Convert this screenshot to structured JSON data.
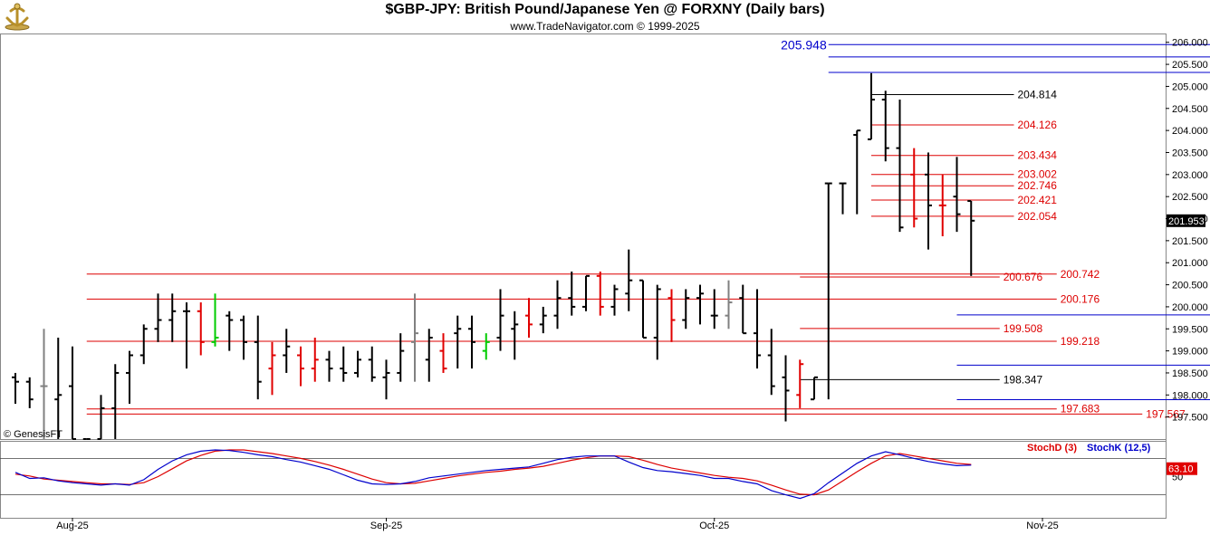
{
  "title": "$GBP-JPY:  British Pound/Japanese Yen @ FORXNY  (Daily bars)",
  "subtitle": "www.TradeNavigator.com © 1999-2025",
  "copyright": "© GenesisFT",
  "chart_data": {
    "type": "ohlc",
    "price_axis": {
      "ylim": [
        197.0,
        206.2
      ],
      "ticks": [
        "197.500",
        "198.000",
        "198.500",
        "199.000",
        "199.500",
        "200.000",
        "200.500",
        "201.000",
        "201.500",
        "202.000",
        "202.500",
        "203.000",
        "203.500",
        "204.000",
        "204.500",
        "205.000",
        "205.500",
        "206.000"
      ],
      "last_price": "201.953"
    },
    "x_ticks": [
      {
        "label": "Aug-25",
        "bar": 4
      },
      {
        "label": "Sep-25",
        "bar": 26
      },
      {
        "label": "Oct-25",
        "bar": 49
      },
      {
        "label": "Nov-25",
        "bar": 72
      }
    ],
    "bars": [
      {
        "o": 198.4,
        "h": 198.5,
        "l": 197.8,
        "c": 198.3,
        "col": "black"
      },
      {
        "o": 198.3,
        "h": 198.4,
        "l": 197.7,
        "c": 197.9,
        "col": "black"
      },
      {
        "o": 198.2,
        "h": 199.5,
        "l": 197.0,
        "c": 198.2,
        "col": "gray"
      },
      {
        "o": 197.9,
        "h": 199.3,
        "l": 197.0,
        "c": 198.0,
        "col": "black"
      },
      {
        "o": 198.2,
        "h": 199.1,
        "l": 197.0,
        "c": 197.0,
        "col": "black"
      },
      {
        "o": 197.0,
        "h": 197.0,
        "l": 197.0,
        "c": 197.0,
        "col": "black"
      },
      {
        "o": 197.0,
        "h": 198.0,
        "l": 197.0,
        "c": 197.7,
        "col": "black"
      },
      {
        "o": 197.7,
        "h": 198.7,
        "l": 197.0,
        "c": 198.5,
        "col": "black"
      },
      {
        "o": 198.5,
        "h": 199.0,
        "l": 197.8,
        "c": 198.9,
        "col": "black"
      },
      {
        "o": 198.9,
        "h": 199.6,
        "l": 198.7,
        "c": 199.5,
        "col": "black"
      },
      {
        "o": 199.5,
        "h": 200.3,
        "l": 199.2,
        "c": 199.7,
        "col": "black"
      },
      {
        "o": 199.7,
        "h": 200.3,
        "l": 199.2,
        "c": 199.9,
        "col": "black"
      },
      {
        "o": 199.9,
        "h": 200.1,
        "l": 198.6,
        "c": 199.9,
        "col": "black"
      },
      {
        "o": 199.9,
        "h": 200.1,
        "l": 198.9,
        "c": 199.2,
        "col": "red"
      },
      {
        "o": 199.2,
        "h": 200.3,
        "l": 199.1,
        "c": 199.3,
        "col": "green"
      },
      {
        "o": 199.8,
        "h": 199.9,
        "l": 199.0,
        "c": 199.7,
        "col": "black"
      },
      {
        "o": 199.7,
        "h": 199.8,
        "l": 198.8,
        "c": 199.2,
        "col": "black"
      },
      {
        "o": 199.2,
        "h": 199.8,
        "l": 197.9,
        "c": 198.3,
        "col": "black"
      },
      {
        "o": 198.6,
        "h": 199.2,
        "l": 198.0,
        "c": 198.9,
        "col": "red"
      },
      {
        "o": 198.9,
        "h": 199.5,
        "l": 198.5,
        "c": 199.1,
        "col": "black"
      },
      {
        "o": 198.9,
        "h": 199.1,
        "l": 198.2,
        "c": 198.6,
        "col": "red"
      },
      {
        "o": 198.6,
        "h": 199.3,
        "l": 198.3,
        "c": 198.8,
        "col": "red"
      },
      {
        "o": 198.8,
        "h": 199.0,
        "l": 198.3,
        "c": 198.6,
        "col": "black"
      },
      {
        "o": 198.6,
        "h": 199.1,
        "l": 198.3,
        "c": 198.5,
        "col": "black"
      },
      {
        "o": 198.5,
        "h": 199.0,
        "l": 198.4,
        "c": 198.8,
        "col": "black"
      },
      {
        "o": 198.8,
        "h": 199.1,
        "l": 198.3,
        "c": 198.4,
        "col": "black"
      },
      {
        "o": 198.4,
        "h": 198.8,
        "l": 197.9,
        "c": 198.5,
        "col": "black"
      },
      {
        "o": 198.5,
        "h": 199.4,
        "l": 198.3,
        "c": 199.0,
        "col": "black"
      },
      {
        "o": 199.2,
        "h": 200.3,
        "l": 198.3,
        "c": 199.4,
        "col": "gray"
      },
      {
        "o": 198.8,
        "h": 199.5,
        "l": 198.3,
        "c": 199.3,
        "col": "black"
      },
      {
        "o": 199.0,
        "h": 199.4,
        "l": 198.5,
        "c": 198.6,
        "col": "red"
      },
      {
        "o": 199.4,
        "h": 199.8,
        "l": 198.6,
        "c": 199.5,
        "col": "black"
      },
      {
        "o": 199.5,
        "h": 199.8,
        "l": 198.6,
        "c": 199.2,
        "col": "black"
      },
      {
        "o": 199.0,
        "h": 199.4,
        "l": 198.8,
        "c": 199.2,
        "col": "green"
      },
      {
        "o": 199.3,
        "h": 200.4,
        "l": 199.0,
        "c": 199.8,
        "col": "black"
      },
      {
        "o": 199.5,
        "h": 199.9,
        "l": 198.8,
        "c": 199.6,
        "col": "black"
      },
      {
        "o": 199.8,
        "h": 200.2,
        "l": 199.3,
        "c": 199.6,
        "col": "red"
      },
      {
        "o": 199.6,
        "h": 200.0,
        "l": 199.4,
        "c": 199.8,
        "col": "black"
      },
      {
        "o": 199.8,
        "h": 200.6,
        "l": 199.5,
        "c": 200.2,
        "col": "black"
      },
      {
        "o": 200.2,
        "h": 200.8,
        "l": 199.8,
        "c": 200.0,
        "col": "black"
      },
      {
        "o": 200.0,
        "h": 200.7,
        "l": 199.9,
        "c": 200.7,
        "col": "black"
      },
      {
        "o": 200.7,
        "h": 200.8,
        "l": 199.8,
        "c": 200.0,
        "col": "red"
      },
      {
        "o": 200.0,
        "h": 200.5,
        "l": 199.8,
        "c": 200.4,
        "col": "black"
      },
      {
        "o": 200.3,
        "h": 201.3,
        "l": 199.9,
        "c": 200.6,
        "col": "black"
      },
      {
        "o": 200.6,
        "h": 200.6,
        "l": 199.3,
        "c": 199.3,
        "col": "black"
      },
      {
        "o": 199.3,
        "h": 200.5,
        "l": 198.8,
        "c": 200.4,
        "col": "black"
      },
      {
        "o": 200.2,
        "h": 200.4,
        "l": 199.2,
        "c": 199.7,
        "col": "red"
      },
      {
        "o": 199.7,
        "h": 200.4,
        "l": 199.5,
        "c": 200.2,
        "col": "black"
      },
      {
        "o": 200.2,
        "h": 200.5,
        "l": 199.6,
        "c": 200.3,
        "col": "black"
      },
      {
        "o": 199.8,
        "h": 200.4,
        "l": 199.5,
        "c": 199.8,
        "col": "black"
      },
      {
        "o": 199.8,
        "h": 200.6,
        "l": 199.5,
        "c": 200.1,
        "col": "gray"
      },
      {
        "o": 200.2,
        "h": 200.5,
        "l": 199.4,
        "c": 199.4,
        "col": "black"
      },
      {
        "o": 199.4,
        "h": 200.4,
        "l": 198.6,
        "c": 198.9,
        "col": "black"
      },
      {
        "o": 198.9,
        "h": 199.5,
        "l": 198.0,
        "c": 198.2,
        "col": "black"
      },
      {
        "o": 198.4,
        "h": 198.9,
        "l": 197.4,
        "c": 198.1,
        "col": "black"
      },
      {
        "o": 198.0,
        "h": 198.8,
        "l": 197.7,
        "c": 198.7,
        "col": "red"
      },
      {
        "o": 197.9,
        "h": 198.4,
        "l": 197.9,
        "c": 198.4,
        "col": "black"
      },
      {
        "o": 202.8,
        "h": 202.8,
        "l": 197.9,
        "c": 202.8,
        "col": "black"
      },
      {
        "o": 202.8,
        "h": 202.8,
        "l": 202.1,
        "c": 202.8,
        "col": "black"
      },
      {
        "o": 203.9,
        "h": 204.0,
        "l": 202.1,
        "c": 204.0,
        "col": "black"
      },
      {
        "o": 203.8,
        "h": 205.3,
        "l": 203.8,
        "c": 204.7,
        "col": "black"
      },
      {
        "o": 204.7,
        "h": 204.9,
        "l": 203.3,
        "c": 203.6,
        "col": "black"
      },
      {
        "o": 203.6,
        "h": 204.7,
        "l": 201.7,
        "c": 201.8,
        "col": "black"
      },
      {
        "o": 203.0,
        "h": 203.6,
        "l": 201.8,
        "c": 202.0,
        "col": "red"
      },
      {
        "o": 203.0,
        "h": 203.5,
        "l": 201.3,
        "c": 202.3,
        "col": "black"
      },
      {
        "o": 202.3,
        "h": 203.0,
        "l": 201.6,
        "c": 202.3,
        "col": "red"
      },
      {
        "o": 202.5,
        "h": 203.4,
        "l": 201.7,
        "c": 202.1,
        "col": "black"
      },
      {
        "o": 202.4,
        "h": 202.4,
        "l": 200.7,
        "c": 201.953,
        "col": "black"
      }
    ],
    "levels": [
      {
        "value": 205.948,
        "label": "205.948",
        "color": "#0000cc",
        "label_pos": "left",
        "big": true,
        "x_from": 57,
        "x_to": 86
      },
      {
        "value": 205.668,
        "label": "205.668",
        "color": "#0000cc",
        "label_pos": "right",
        "big": true,
        "x_from": 57,
        "x_to": 86
      },
      {
        "value": 205.317,
        "label": "205.317",
        "color": "#0000cc",
        "label_pos": "right",
        "big": true,
        "x_from": 57,
        "x_to": 86
      },
      {
        "value": 204.814,
        "label": "204.814",
        "color": "#000000",
        "label_pos": "right",
        "big": false,
        "x_from": 60,
        "x_to": 70
      },
      {
        "value": 204.126,
        "label": "204.126",
        "color": "#dd0000",
        "label_pos": "right",
        "big": false,
        "x_from": 60,
        "x_to": 70
      },
      {
        "value": 203.434,
        "label": "203.434",
        "color": "#dd0000",
        "label_pos": "right",
        "big": false,
        "x_from": 60,
        "x_to": 70
      },
      {
        "value": 203.002,
        "label": "203.002",
        "color": "#dd0000",
        "label_pos": "right",
        "big": false,
        "x_from": 60,
        "x_to": 70
      },
      {
        "value": 202.746,
        "label": "202.746",
        "color": "#dd0000",
        "label_pos": "right",
        "big": false,
        "x_from": 60,
        "x_to": 70
      },
      {
        "value": 202.421,
        "label": "202.421",
        "color": "#dd0000",
        "label_pos": "right",
        "big": false,
        "x_from": 60,
        "x_to": 70
      },
      {
        "value": 202.054,
        "label": "202.054",
        "color": "#dd0000",
        "label_pos": "right",
        "big": false,
        "x_from": 60,
        "x_to": 70
      },
      {
        "value": 200.742,
        "label": "200.742",
        "color": "#dd0000",
        "label_pos": "right",
        "big": false,
        "x_from": 5,
        "x_to": 73
      },
      {
        "value": 200.676,
        "label": "200.676",
        "color": "#dd0000",
        "label_pos": "right",
        "big": false,
        "x_from": 55,
        "x_to": 69
      },
      {
        "value": 200.176,
        "label": "200.176",
        "color": "#dd0000",
        "label_pos": "right",
        "big": false,
        "x_from": 5,
        "x_to": 73
      },
      {
        "value": 199.816,
        "label": "199.816",
        "color": "#0000cc",
        "label_pos": "right",
        "big": true,
        "x_from": 66,
        "x_to": 86
      },
      {
        "value": 199.508,
        "label": "199.508",
        "color": "#dd0000",
        "label_pos": "right",
        "big": false,
        "x_from": 55,
        "x_to": 69
      },
      {
        "value": 199.218,
        "label": "199.218",
        "color": "#dd0000",
        "label_pos": "right",
        "big": false,
        "x_from": 5,
        "x_to": 73
      },
      {
        "value": 198.676,
        "label": "198.676",
        "color": "#0000cc",
        "label_pos": "right",
        "big": true,
        "x_from": 66,
        "x_to": 86
      },
      {
        "value": 198.347,
        "label": "198.347",
        "color": "#000000",
        "label_pos": "right",
        "big": false,
        "x_from": 55,
        "x_to": 69
      },
      {
        "value": 197.894,
        "label": "197.894",
        "color": "#0000cc",
        "label_pos": "right",
        "big": true,
        "x_from": 66,
        "x_to": 86
      },
      {
        "value": 197.683,
        "label": "197.683",
        "color": "#dd0000",
        "label_pos": "right",
        "big": false,
        "x_from": 5,
        "x_to": 73
      },
      {
        "value": 197.567,
        "label": "197.567",
        "color": "#dd0000",
        "label_pos": "right",
        "big": false,
        "x_from": 5,
        "x_to": 79
      }
    ],
    "stochastic": {
      "labels": {
        "d": "StochD (3)",
        "k": "StochK (12,5)"
      },
      "tick_label": "50",
      "last_value": "63.10",
      "k": [
        57,
        47,
        48,
        43,
        40,
        38,
        36,
        38,
        36,
        45,
        62,
        76,
        86,
        92,
        94,
        93,
        90,
        86,
        83,
        78,
        74,
        68,
        62,
        53,
        44,
        38,
        37,
        38,
        42,
        48,
        51,
        54,
        57,
        60,
        62,
        64,
        66,
        72,
        78,
        82,
        84,
        84,
        84,
        74,
        65,
        60,
        58,
        55,
        52,
        47,
        47,
        42,
        38,
        27,
        20,
        14,
        22,
        40,
        56,
        72,
        84,
        91,
        86,
        80,
        75,
        71,
        68,
        69
      ],
      "d": [
        54,
        51,
        46,
        44,
        42,
        40,
        38,
        38,
        37,
        40,
        50,
        63,
        76,
        85,
        92,
        94,
        94,
        91,
        88,
        84,
        80,
        75,
        69,
        62,
        54,
        46,
        40,
        38,
        39,
        43,
        47,
        51,
        54,
        57,
        59,
        62,
        64,
        67,
        72,
        77,
        81,
        84,
        84,
        83,
        77,
        70,
        64,
        60,
        56,
        52,
        49,
        47,
        43,
        36,
        28,
        21,
        20,
        28,
        43,
        58,
        72,
        84,
        88,
        84,
        80,
        76,
        72,
        70
      ]
    }
  }
}
